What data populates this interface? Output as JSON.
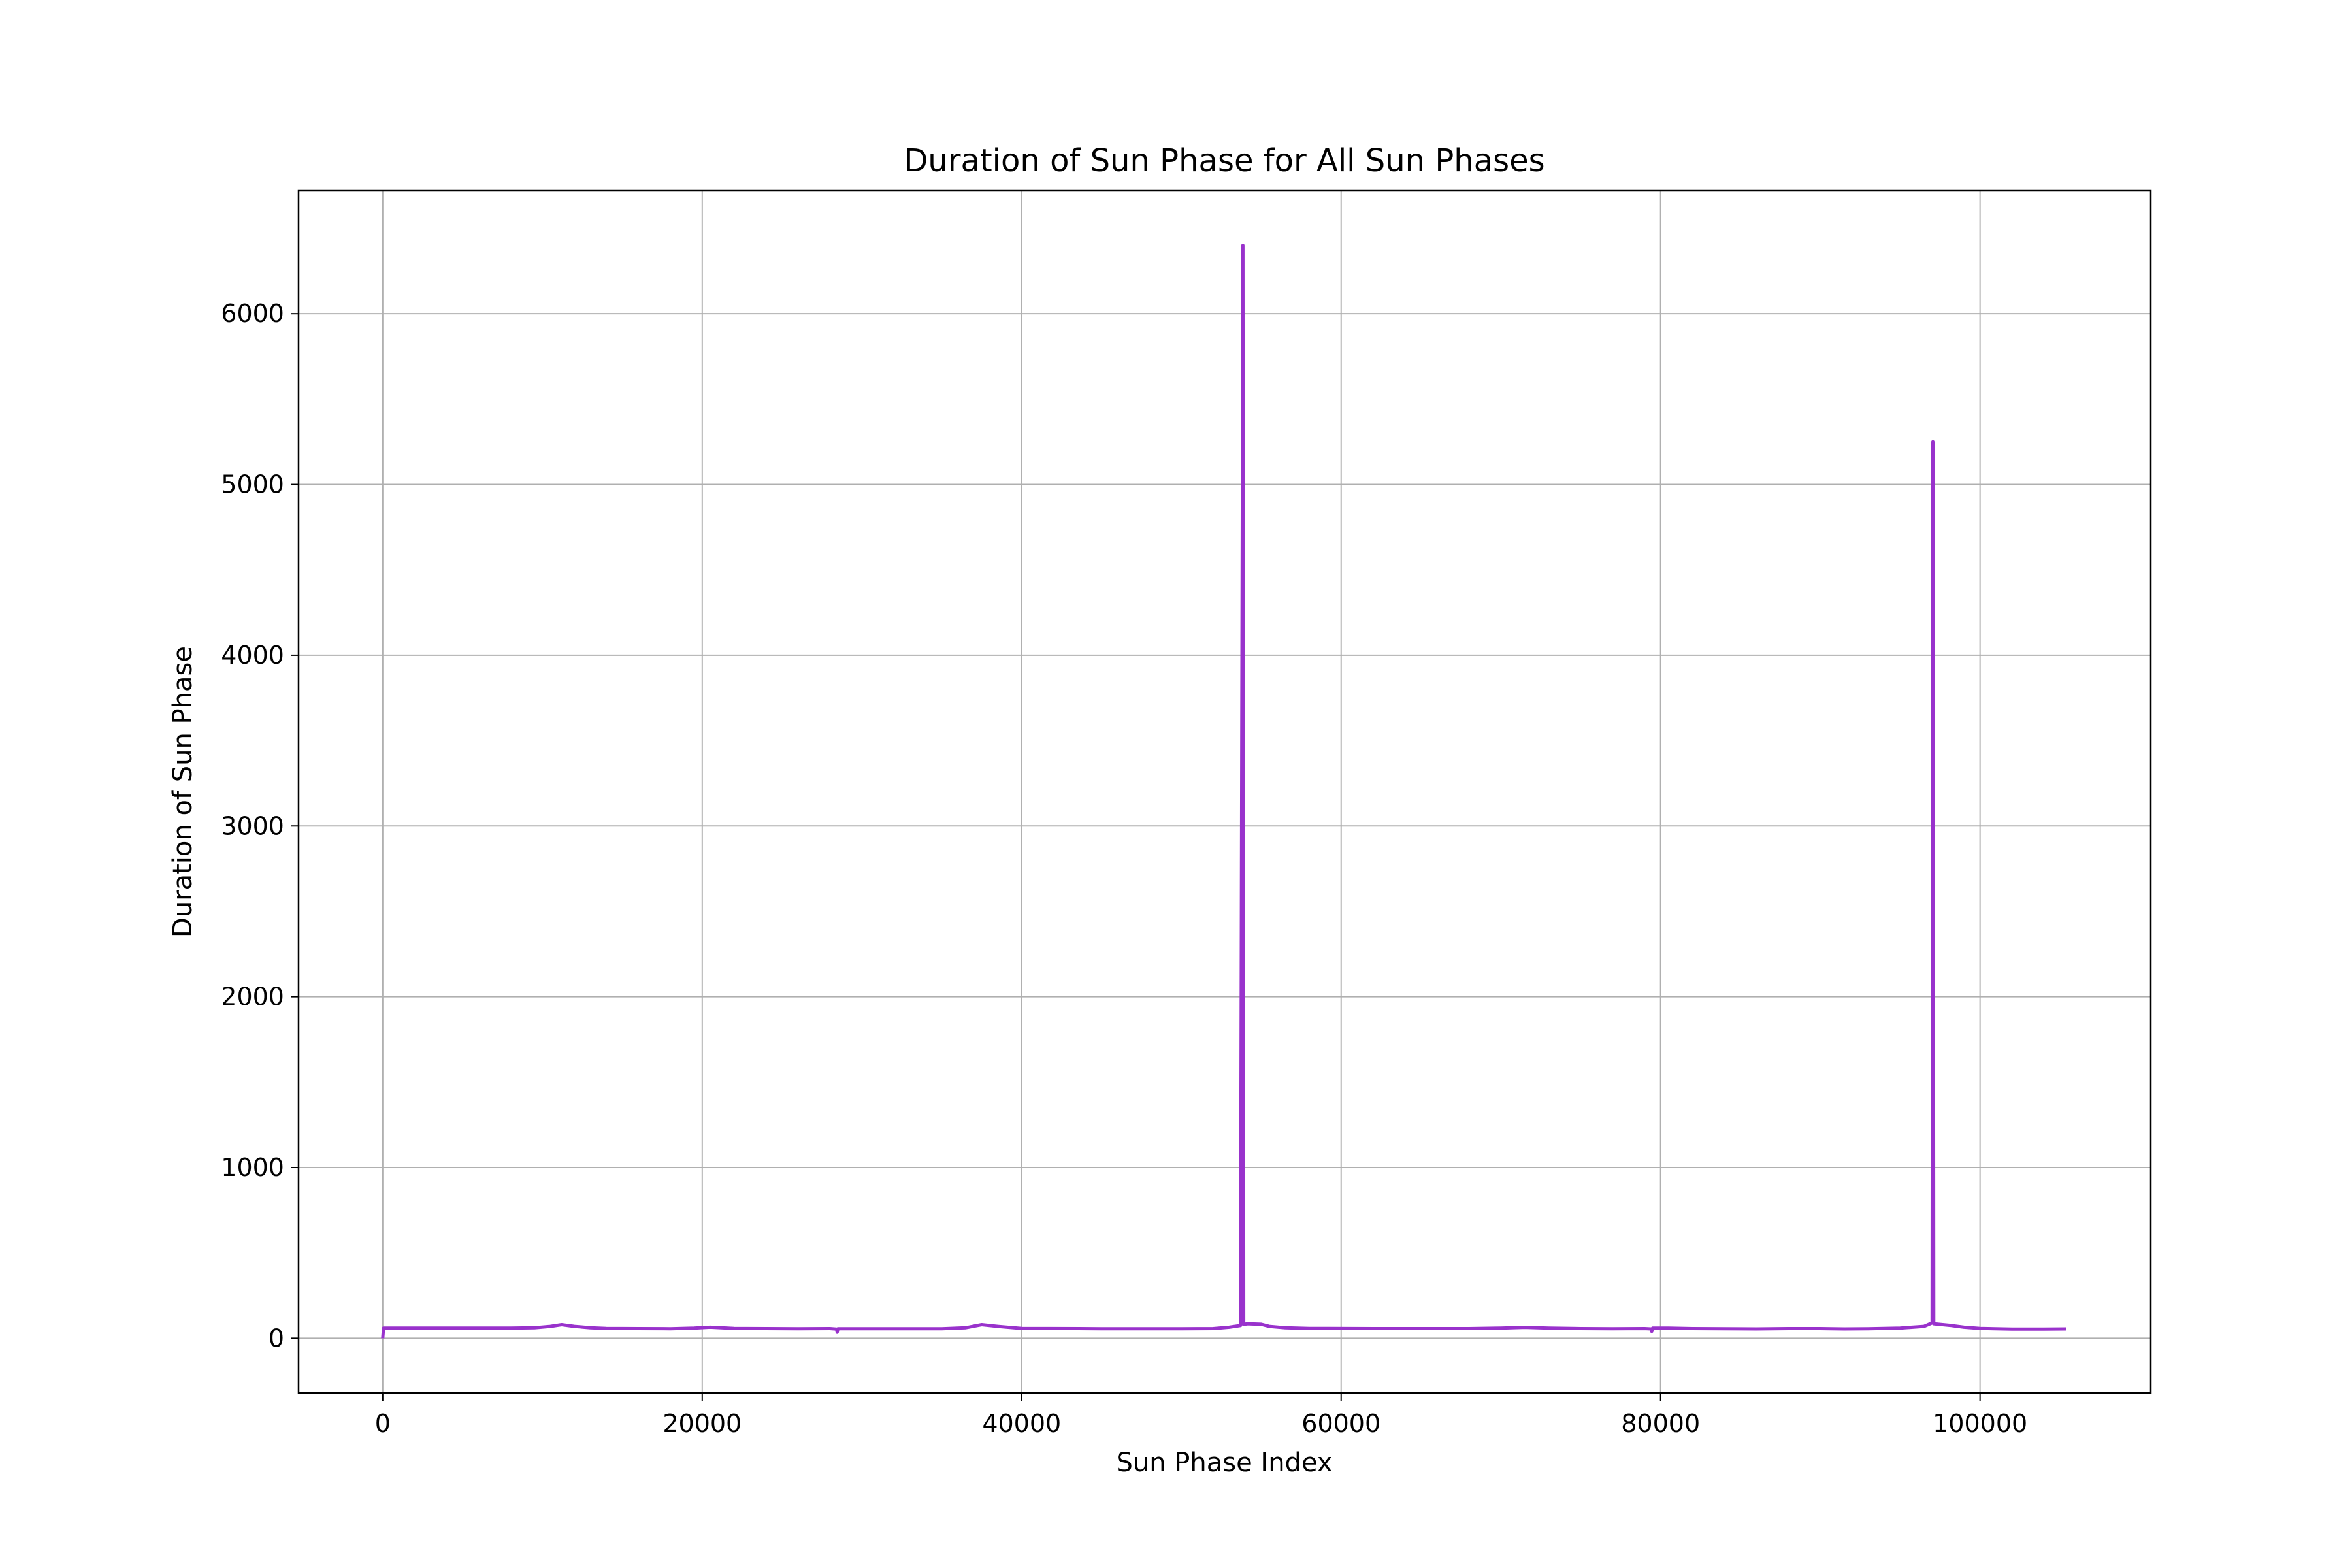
{
  "chart_data": {
    "type": "line",
    "title": "Duration of Sun Phase for All Sun Phases",
    "xlabel": "Sun Phase Index",
    "ylabel": "Duration of Sun Phase",
    "xlim": [
      -5270,
      110690
    ],
    "ylim": [
      -320,
      6720
    ],
    "xticks": [
      0,
      20000,
      40000,
      60000,
      80000,
      100000
    ],
    "yticks": [
      0,
      1000,
      2000,
      3000,
      4000,
      5000,
      6000
    ],
    "grid": true,
    "legend": "none",
    "series": [
      {
        "color": "#9932cc",
        "x": [
          0,
          50,
          100,
          2000,
          5000,
          8000,
          9500,
          10500,
          11200,
          12000,
          13000,
          14000,
          16000,
          18000,
          19500,
          20500,
          22000,
          24000,
          26000,
          28000,
          28400,
          28450,
          28500,
          30000,
          33000,
          35000,
          36500,
          37500,
          38500,
          40000,
          45000,
          50000,
          52000,
          53000,
          53700,
          53850,
          53900,
          54100,
          55000,
          55500,
          56500,
          58000,
          62000,
          66000,
          68000,
          70000,
          71500,
          73000,
          75000,
          77000,
          79000,
          79400,
          79450,
          79500,
          80500,
          82000,
          84000,
          86000,
          88000,
          90000,
          91500,
          93000,
          95000,
          96500,
          97000,
          97050,
          97100,
          97400,
          98200,
          99000,
          100000,
          102000,
          104000,
          105400
        ],
        "y": [
          0,
          60,
          60,
          60,
          60,
          60,
          62,
          70,
          80,
          70,
          62,
          58,
          57,
          56,
          60,
          65,
          58,
          57,
          56,
          57,
          54,
          35,
          56,
          56,
          56,
          56,
          62,
          80,
          70,
          58,
          56,
          56,
          57,
          65,
          75,
          6400,
          80,
          85,
          82,
          70,
          62,
          58,
          57,
          57,
          57,
          60,
          64,
          60,
          57,
          56,
          57,
          55,
          40,
          60,
          60,
          57,
          56,
          55,
          57,
          57,
          55,
          56,
          60,
          70,
          90,
          5250,
          85,
          82,
          75,
          65,
          58,
          54,
          54,
          55
        ]
      }
    ]
  }
}
